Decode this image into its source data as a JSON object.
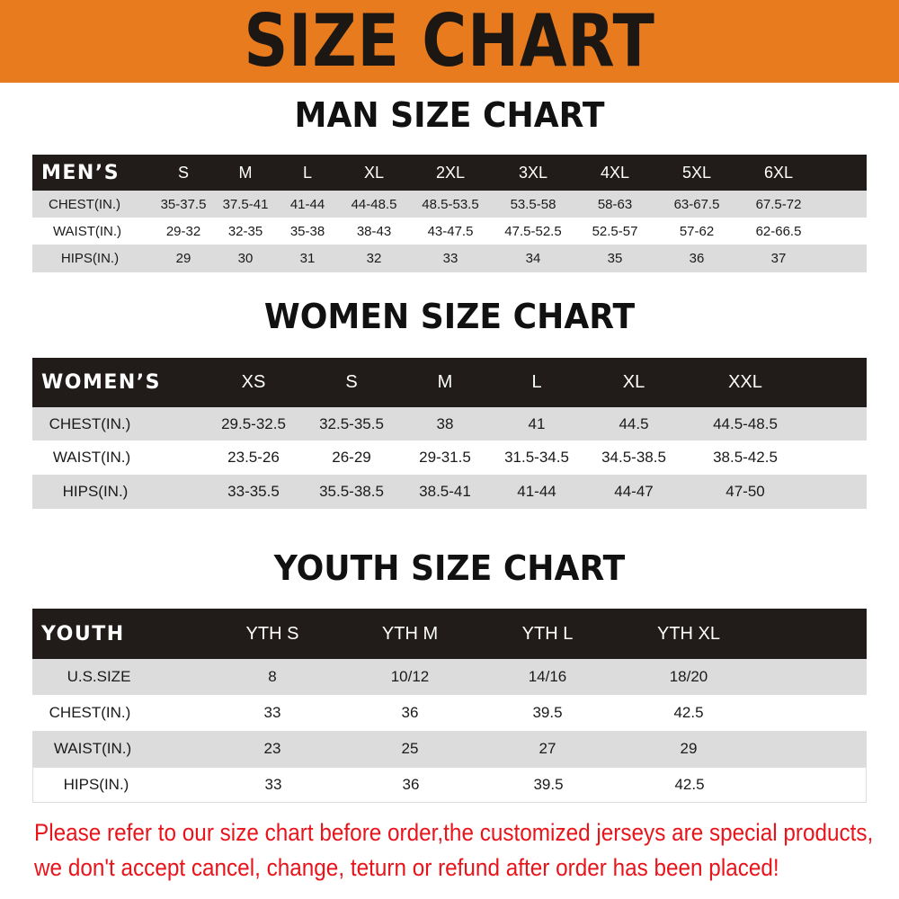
{
  "banner": {
    "title": "SIZE CHART",
    "color": "#E87B1E"
  },
  "men": {
    "title": "MAN SIZE CHART",
    "header_label": "MEN’S",
    "sizes": [
      "S",
      "M",
      "L",
      "XL",
      "2XL",
      "3XL",
      "4XL",
      "5XL",
      "6XL"
    ],
    "rows": [
      {
        "label": "CHEST(IN.)",
        "values": [
          "35-37.5",
          "37.5-41",
          "41-44",
          "44-48.5",
          "48.5-53.5",
          "53.5-58",
          "58-63",
          "63-67.5",
          "67.5-72"
        ]
      },
      {
        "label": "WAIST(IN.)",
        "values": [
          "29-32",
          "32-35",
          "35-38",
          "38-43",
          "43-47.5",
          "47.5-52.5",
          "52.5-57",
          "57-62",
          "62-66.5"
        ]
      },
      {
        "label": "HIPS(IN.)",
        "values": [
          "29",
          "30",
          "31",
          "32",
          "33",
          "34",
          "35",
          "36",
          "37"
        ]
      }
    ]
  },
  "women": {
    "title": "WOMEN SIZE CHART",
    "header_label": "WOMEN’S",
    "sizes": [
      "XS",
      "S",
      "M",
      "L",
      "XL",
      "XXL"
    ],
    "rows": [
      {
        "label": "CHEST(IN.)",
        "values": [
          "29.5-32.5",
          "32.5-35.5",
          "38",
          "41",
          "44.5",
          "44.5-48.5"
        ]
      },
      {
        "label": "WAIST(IN.)",
        "values": [
          "23.5-26",
          "26-29",
          "29-31.5",
          "31.5-34.5",
          "34.5-38.5",
          "38.5-42.5"
        ]
      },
      {
        "label": "HIPS(IN.)",
        "values": [
          "33-35.5",
          "35.5-38.5",
          "38.5-41",
          "41-44",
          "44-47",
          "47-50"
        ]
      }
    ]
  },
  "youth": {
    "title": "YOUTH SIZE CHART",
    "header_label": "YOUTH",
    "sizes": [
      "YTH S",
      "YTH M",
      "YTH L",
      "YTH XL"
    ],
    "rows": [
      {
        "label": "U.S.SIZE",
        "values": [
          "8",
          "10/12",
          "14/16",
          "18/20"
        ]
      },
      {
        "label": "CHEST(IN.)",
        "values": [
          "33",
          "36",
          "39.5",
          "42.5"
        ]
      },
      {
        "label": "WAIST(IN.)",
        "values": [
          "23",
          "25",
          "27",
          "29"
        ]
      },
      {
        "label": "HIPS(IN.)",
        "values": [
          "33",
          "36",
          "39.5",
          "42.5"
        ]
      }
    ]
  },
  "notice": {
    "line1": "Please refer to our size chart before order,the customized jerseys are special products,",
    "line2": "we don't accept cancel, change, teturn or refund after order has been placed!",
    "color": "#E8141B"
  }
}
